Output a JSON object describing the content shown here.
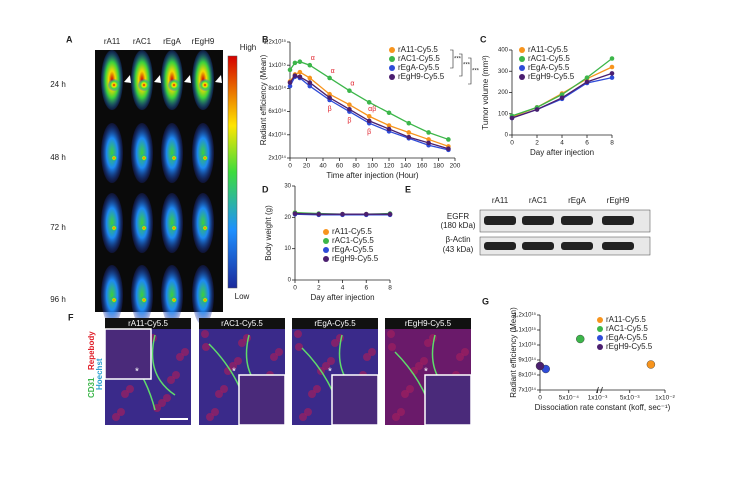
{
  "panel_a": {
    "panel": "A",
    "columns": [
      "rA11",
      "rAC1",
      "rEgA",
      "rEgH9"
    ],
    "rows": [
      "24 h",
      "48 h",
      "72 h",
      "96 h"
    ],
    "scale_high": "High",
    "scale_low": "Low"
  },
  "panel_e": {
    "panel": "E",
    "columns": [
      "rA11",
      "rAC1",
      "rEgA",
      "rEgH9"
    ],
    "bands": [
      {
        "name": "EGFR",
        "size": "(180 kDa)"
      },
      {
        "name": "β-Actin",
        "size": "(43 kDa)"
      }
    ]
  },
  "panel_f": {
    "panel": "F",
    "titles": [
      "rA11-Cy5.5",
      "rAC1-Cy5.5",
      "rEgA-Cy5.5",
      "rEgH9-Cy5.5"
    ],
    "stain_cd31": "CD31",
    "stain_repebody": "Repebody",
    "stain_hoechst": "Hoechst",
    "marker": "*"
  },
  "chart_data": [
    {
      "type": "line",
      "panel": "B",
      "y_label": "Radiant efficiency (Mean)",
      "x_label": "Time after injection (Hour)",
      "x": [
        0,
        6,
        12,
        24,
        48,
        72,
        96,
        120,
        144,
        168,
        192
      ],
      "xlim": [
        0,
        200
      ],
      "xticks": [
        0,
        20,
        40,
        60,
        80,
        100,
        120,
        140,
        160,
        180,
        200
      ],
      "ylim": [
        200000000000000,
        1200000000000000
      ],
      "yticks": [
        {
          "value": 200000000000000,
          "label": "2x10¹⁴"
        },
        {
          "value": 400000000000000,
          "label": "4x10¹⁴"
        },
        {
          "value": 600000000000000,
          "label": "6x10¹⁴"
        },
        {
          "value": 800000000000000,
          "label": "8x10¹⁴"
        },
        {
          "value": 1000000000000000,
          "label": "1x10¹⁵"
        },
        {
          "value": 1200000000000000,
          "label": "1,2x10¹⁵"
        }
      ],
      "significance": [
        "***",
        "***",
        "***"
      ],
      "series": [
        {
          "name": "rA11-Cy5.5",
          "color": "#f7941d",
          "values": [
            860000000000000,
            920000000000000,
            940000000000000,
            890000000000000,
            750000000000000,
            660000000000000,
            560000000000000,
            480000000000000,
            420000000000000,
            360000000000000,
            300000000000000
          ],
          "point_labels": [
            null,
            null,
            null,
            null,
            null,
            null,
            "αβ",
            null,
            null,
            null,
            null
          ]
        },
        {
          "name": "rAC1-Cy5.5",
          "color": "#3cb64a",
          "values": [
            960000000000000,
            1020000000000000,
            1030000000000000,
            1000000000000000,
            890000000000000,
            780000000000000,
            680000000000000,
            590000000000000,
            500000000000000,
            420000000000000,
            360000000000000
          ],
          "point_labels": [
            null,
            null,
            null,
            "α",
            "α",
            "α",
            null,
            null,
            null,
            null,
            null
          ]
        },
        {
          "name": "rEgA-Cy5.5",
          "color": "#2e4bd8",
          "values": [
            820000000000000,
            900000000000000,
            890000000000000,
            820000000000000,
            700000000000000,
            600000000000000,
            500000000000000,
            430000000000000,
            370000000000000,
            310000000000000,
            270000000000000
          ],
          "point_labels": [
            null,
            null,
            null,
            null,
            "β",
            "β",
            "β",
            null,
            null,
            null,
            null
          ]
        },
        {
          "name": "rEgH9-Cy5.5",
          "color": "#4b1f6f",
          "values": [
            850000000000000,
            910000000000000,
            900000000000000,
            850000000000000,
            720000000000000,
            620000000000000,
            520000000000000,
            450000000000000,
            380000000000000,
            330000000000000,
            280000000000000
          ]
        }
      ]
    },
    {
      "type": "line",
      "panel": "C",
      "y_label": "Tumor volume (mm³)",
      "x_label": "Day after injection",
      "x": [
        0,
        2,
        4,
        6,
        8
      ],
      "xlim": [
        0,
        8
      ],
      "xticks": [
        0,
        2,
        4,
        6,
        8
      ],
      "ylim": [
        0,
        400
      ],
      "yticks": [
        0,
        100,
        200,
        300,
        400
      ],
      "series": [
        {
          "name": "rA11-Cy5.5",
          "color": "#f7941d",
          "values": [
            85,
            130,
            195,
            265,
            320
          ]
        },
        {
          "name": "rAC1-Cy5.5",
          "color": "#3cb64a",
          "values": [
            90,
            130,
            190,
            270,
            360
          ]
        },
        {
          "name": "rEgA-Cy5.5",
          "color": "#2e4bd8",
          "values": [
            80,
            120,
            170,
            245,
            270
          ]
        },
        {
          "name": "rEgH9-Cy5.5",
          "color": "#4b1f6f",
          "values": [
            80,
            120,
            175,
            250,
            290
          ]
        }
      ]
    },
    {
      "type": "line",
      "panel": "D",
      "y_label": "Body weight (g)",
      "x_label": "Day after injection",
      "x": [
        0,
        2,
        4,
        6,
        8
      ],
      "xlim": [
        0,
        8
      ],
      "xticks": [
        0,
        2,
        4,
        6,
        8
      ],
      "ylim": [
        0,
        30
      ],
      "yticks": [
        0,
        10,
        20,
        30
      ],
      "series": [
        {
          "name": "rA11-Cy5.5",
          "color": "#f7941d",
          "values": [
            21.5,
            21,
            21,
            21,
            21
          ]
        },
        {
          "name": "rAC1-Cy5.5",
          "color": "#3cb64a",
          "values": [
            21.5,
            21.2,
            21,
            21,
            21.2
          ]
        },
        {
          "name": "rEgA-Cy5.5",
          "color": "#2e4bd8",
          "values": [
            21,
            20.8,
            20.8,
            20.8,
            20.8
          ]
        },
        {
          "name": "rEgH9-Cy5.5",
          "color": "#4b1f6f",
          "values": [
            21.2,
            21,
            21,
            21,
            21
          ]
        }
      ]
    },
    {
      "type": "scatter",
      "panel": "G",
      "y_label": "Radiant efficiency (Mean)",
      "x_label": "Dissociation rate constant (koff, sec⁻¹)",
      "xlim": [
        0,
        0.01
      ],
      "xbreak": 0.001,
      "xticks": [
        0,
        {
          "value": 0.0005,
          "label": "5x10⁻⁴"
        },
        {
          "value": 0.001,
          "label": "1x10⁻³"
        },
        {
          "value": 0.005,
          "label": "5x10⁻³"
        },
        {
          "value": 0.01,
          "label": "1x10⁻²"
        }
      ],
      "ylim": [
        700000000000000,
        1200000000000000
      ],
      "yticks": [
        {
          "value": 700000000000000,
          "label": "7x10¹⁴"
        },
        {
          "value": 800000000000000,
          "label": "8x10¹⁴"
        },
        {
          "value": 900000000000000,
          "label": "9x10¹⁴"
        },
        {
          "value": 1000000000000000,
          "label": "1x10¹⁵"
        },
        {
          "value": 1100000000000000,
          "label": "1.1x10¹⁵"
        },
        {
          "value": 1200000000000000,
          "label": "1,2x10¹⁵"
        }
      ],
      "series": [
        {
          "name": "rA11-Cy5.5",
          "color": "#f7941d",
          "x": [
            0.008
          ],
          "values": [
            870000000000000
          ]
        },
        {
          "name": "rAC1-Cy5.5",
          "color": "#3cb64a",
          "x": [
            0.0007
          ],
          "values": [
            1040000000000000
          ]
        },
        {
          "name": "rEgA-Cy5.5",
          "color": "#2e4bd8",
          "x": [
            0.0001
          ],
          "values": [
            840000000000000
          ]
        },
        {
          "name": "rEgH9-Cy5.5",
          "color": "#4b1f6f",
          "x": [
            0
          ],
          "values": [
            860000000000000
          ]
        }
      ]
    }
  ]
}
